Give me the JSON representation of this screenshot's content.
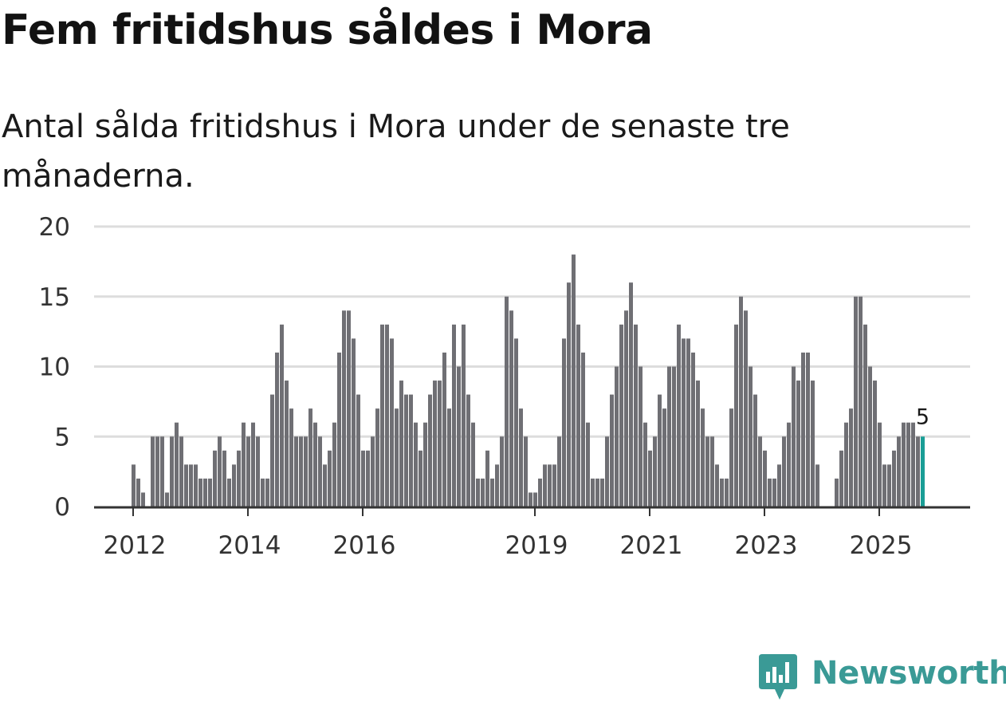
{
  "title": "Fem fritidshus såldes i Mora",
  "subtitle": "Antal sålda fritidshus i Mora under de senaste tre månaderna.",
  "colors": {
    "bar": "#6f6f74",
    "highlight": "#1a9e96",
    "grid": "#dddddd",
    "axis": "#333333",
    "brand": "#3a9a96"
  },
  "logo": {
    "text": "Newsworthy",
    "icon": "newsworthy-logo-icon"
  },
  "chart_data": {
    "type": "bar",
    "title": "Fem fritidshus såldes i Mora",
    "subtitle": "Antal sålda fritidshus i Mora under de senaste tre månaderna.",
    "x_unit": "month",
    "start": "2012-01",
    "end": "2025-10",
    "ylim": [
      0,
      20
    ],
    "yticks": [
      0,
      5,
      10,
      15,
      20
    ],
    "xticks": [
      {
        "label": "2012",
        "index": 0
      },
      {
        "label": "2014",
        "index": 24
      },
      {
        "label": "2016",
        "index": 48
      },
      {
        "label": "2019",
        "index": 84
      },
      {
        "label": "2021",
        "index": 108
      },
      {
        "label": "2023",
        "index": 132
      },
      {
        "label": "2025",
        "index": 156
      }
    ],
    "grid": true,
    "values": [
      3,
      2,
      1,
      0,
      5,
      5,
      5,
      1,
      5,
      6,
      5,
      3,
      3,
      3,
      2,
      2,
      2,
      4,
      5,
      4,
      2,
      3,
      4,
      6,
      5,
      6,
      5,
      2,
      2,
      8,
      11,
      13,
      9,
      7,
      5,
      5,
      5,
      7,
      6,
      5,
      3,
      4,
      6,
      11,
      14,
      14,
      12,
      8,
      4,
      4,
      5,
      7,
      13,
      13,
      12,
      7,
      9,
      8,
      8,
      6,
      4,
      6,
      8,
      9,
      9,
      11,
      7,
      13,
      10,
      13,
      8,
      6,
      2,
      2,
      4,
      2,
      3,
      5,
      15,
      14,
      12,
      7,
      5,
      1,
      1,
      2,
      3,
      3,
      3,
      5,
      12,
      16,
      18,
      13,
      11,
      6,
      2,
      2,
      2,
      5,
      8,
      10,
      13,
      14,
      16,
      13,
      10,
      6,
      4,
      5,
      8,
      7,
      10,
      10,
      13,
      12,
      12,
      11,
      9,
      7,
      5,
      5,
      3,
      2,
      2,
      7,
      13,
      15,
      14,
      10,
      8,
      5,
      4,
      2,
      2,
      3,
      5,
      6,
      10,
      9,
      11,
      11,
      9,
      3,
      0,
      0,
      0,
      2,
      4,
      6,
      7,
      15,
      15,
      13,
      10,
      9,
      6,
      3,
      3,
      4,
      5,
      6,
      6,
      6,
      5,
      5
    ],
    "highlight_last": true,
    "last_label": "5"
  }
}
